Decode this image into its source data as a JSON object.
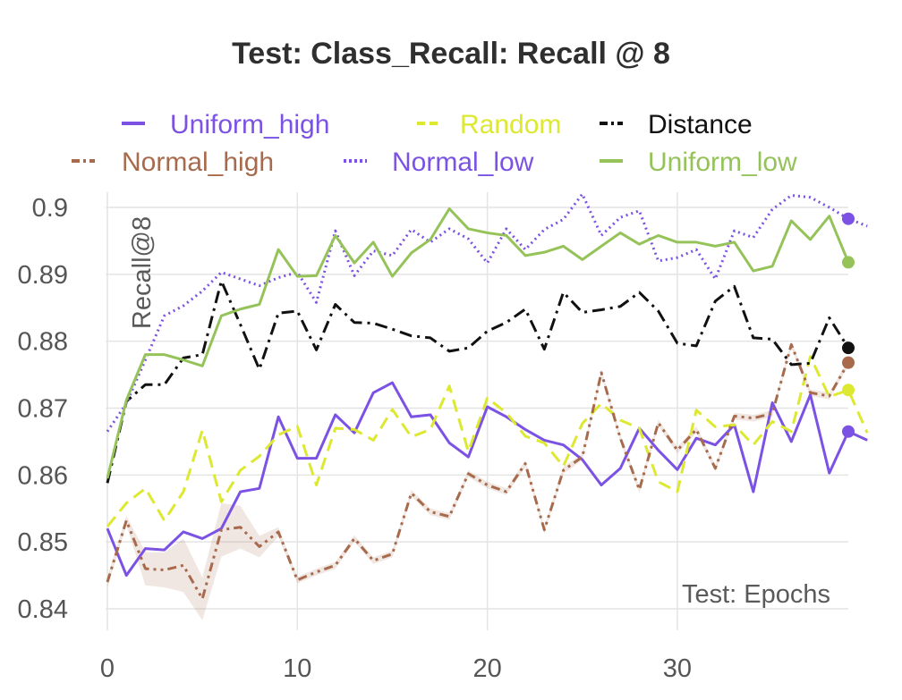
{
  "chart_data": {
    "type": "line",
    "title": "Test: Class_Recall: Recall @ 8",
    "xlabel": "Test: Epochs",
    "ylabel": "Recall@8",
    "xlim": [
      0,
      39
    ],
    "ylim": [
      0.837,
      0.904
    ],
    "xticks": [
      0,
      10,
      20,
      30
    ],
    "yticks": [
      0.84,
      0.85,
      0.86,
      0.87,
      0.88,
      0.89,
      0.9
    ],
    "ytick_labels": [
      "0.84",
      "0.85",
      "0.86",
      "0.87",
      "0.88",
      "0.89",
      "0.9"
    ],
    "grid": true,
    "legend": {
      "position": "top",
      "columns": 3
    },
    "series": [
      {
        "name": "Uniform_high",
        "color": "#7b52e3",
        "dash": "solid",
        "values": [
          0.852,
          0.845,
          0.849,
          0.8488,
          0.8515,
          0.8505,
          0.852,
          0.8575,
          0.858,
          0.8687,
          0.8625,
          0.8625,
          0.869,
          0.8663,
          0.8723,
          0.8738,
          0.8687,
          0.869,
          0.8648,
          0.8627,
          0.8702,
          0.8687,
          0.8668,
          0.8652,
          0.8645,
          0.8623,
          0.8585,
          0.861,
          0.867,
          0.8637,
          0.8608,
          0.8655,
          0.8645,
          0.8675,
          0.8575,
          0.8708,
          0.865,
          0.872,
          0.8603,
          0.8665,
          0.8652
        ]
      },
      {
        "name": "Random",
        "color": "#dde830",
        "dash": "dashed",
        "values": [
          0.8523,
          0.8558,
          0.858,
          0.8532,
          0.8575,
          0.8667,
          0.856,
          0.8607,
          0.8628,
          0.866,
          0.8673,
          0.8585,
          0.867,
          0.8668,
          0.8652,
          0.8698,
          0.8657,
          0.8668,
          0.8733,
          0.8635,
          0.8715,
          0.8693,
          0.8658,
          0.8648,
          0.8613,
          0.8677,
          0.8707,
          0.8682,
          0.867,
          0.859,
          0.8575,
          0.8697,
          0.8672,
          0.8675,
          0.8645,
          0.868,
          0.8665,
          0.8777,
          0.8717,
          0.8727,
          0.8663
        ]
      },
      {
        "name": "Distance",
        "color": "#111111",
        "dash": "dashdot",
        "values": [
          0.8588,
          0.871,
          0.8735,
          0.8735,
          0.8775,
          0.878,
          0.889,
          0.8825,
          0.8758,
          0.8842,
          0.8845,
          0.8787,
          0.8855,
          0.8828,
          0.8827,
          0.8818,
          0.8808,
          0.8805,
          0.8785,
          0.879,
          0.8815,
          0.8828,
          0.8848,
          0.8788,
          0.8873,
          0.8843,
          0.8847,
          0.8852,
          0.8873,
          0.8845,
          0.8797,
          0.8793,
          0.886,
          0.8882,
          0.8805,
          0.8803,
          0.8765,
          0.8767,
          0.8835,
          0.879
        ]
      },
      {
        "name": "Normal_high",
        "color": "#a86a4c",
        "dash": "dashdotdot",
        "values": [
          0.844,
          0.8532,
          0.846,
          0.8458,
          0.8465,
          0.8415,
          0.8518,
          0.8522,
          0.8493,
          0.8515,
          0.8443,
          0.8455,
          0.8465,
          0.8505,
          0.8472,
          0.8482,
          0.8573,
          0.8545,
          0.8538,
          0.8602,
          0.8585,
          0.8575,
          0.8617,
          0.8518,
          0.8607,
          0.8627,
          0.8753,
          0.8655,
          0.8578,
          0.8678,
          0.8637,
          0.8668,
          0.861,
          0.8688,
          0.8685,
          0.8692,
          0.8795,
          0.8723,
          0.8718,
          0.8768
        ]
      },
      {
        "name": "Normal_low",
        "color": "#7b52e3",
        "dash": "dotted",
        "values": [
          0.8665,
          0.8707,
          0.8772,
          0.8838,
          0.8853,
          0.8875,
          0.8903,
          0.8893,
          0.8883,
          0.8895,
          0.8903,
          0.8858,
          0.8965,
          0.8898,
          0.8935,
          0.8928,
          0.8967,
          0.8948,
          0.8968,
          0.8953,
          0.8917,
          0.8968,
          0.8937,
          0.8967,
          0.8982,
          0.902,
          0.8958,
          0.8985,
          0.8995,
          0.892,
          0.8925,
          0.8937,
          0.8893,
          0.8965,
          0.8955,
          0.8997,
          0.9018,
          0.9015,
          0.9,
          0.8983,
          0.8972
        ]
      },
      {
        "name": "Uniform_low",
        "color": "#95c35a",
        "dash": "solid",
        "values": [
          0.8595,
          0.8712,
          0.878,
          0.878,
          0.8772,
          0.8763,
          0.8838,
          0.8848,
          0.8855,
          0.8937,
          0.8897,
          0.8898,
          0.8958,
          0.8917,
          0.8948,
          0.8897,
          0.8932,
          0.8952,
          0.8998,
          0.8968,
          0.8962,
          0.8958,
          0.8928,
          0.8933,
          0.8942,
          0.8922,
          0.8942,
          0.8962,
          0.8945,
          0.8958,
          0.8948,
          0.8948,
          0.8942,
          0.8948,
          0.8905,
          0.8912,
          0.898,
          0.8952,
          0.8987,
          0.8918
        ]
      }
    ],
    "bands": [
      {
        "series": "Normal_high",
        "lower": [
          0.8432,
          0.8525,
          0.8435,
          0.8432,
          0.8425,
          0.8383,
          0.8478,
          0.849,
          0.8477,
          0.8508,
          0.8438,
          0.845,
          0.846,
          0.85,
          0.8467,
          0.8477,
          0.8568,
          0.854,
          0.8533,
          0.8597,
          0.858,
          0.857,
          0.8612,
          0.8513,
          0.8602,
          0.8622,
          0.8748,
          0.865,
          0.8573,
          0.8673,
          0.8632,
          0.8663,
          0.8605,
          0.8683,
          0.868,
          0.8687,
          0.879,
          0.8718,
          0.8713,
          0.8763
        ],
        "upper": [
          0.8448,
          0.8539,
          0.8485,
          0.8484,
          0.8505,
          0.8447,
          0.8558,
          0.8554,
          0.8509,
          0.8522,
          0.8448,
          0.846,
          0.847,
          0.851,
          0.8477,
          0.8487,
          0.8578,
          0.855,
          0.8543,
          0.8607,
          0.859,
          0.858,
          0.8622,
          0.8523,
          0.8612,
          0.8632,
          0.8758,
          0.866,
          0.8583,
          0.8683,
          0.8642,
          0.8673,
          0.8615,
          0.8693,
          0.869,
          0.8697,
          0.88,
          0.8728,
          0.8723,
          0.8773
        ]
      }
    ],
    "end_markers_at_x": 39
  }
}
